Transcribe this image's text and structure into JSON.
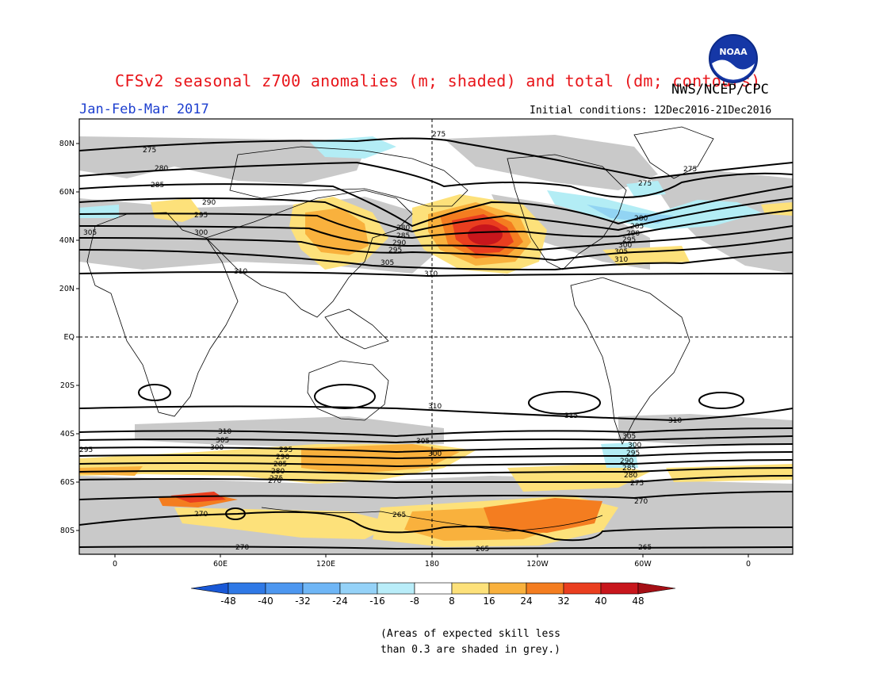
{
  "header": {
    "title": "CFSv2 seasonal z700 anomalies (m; shaded) and total (dm; contours)",
    "agency": "NWS/NCEP/CPC",
    "season": "Jan-Feb-Mar 2017",
    "initial_conditions": "Initial conditions: 12Dec2016-21Dec2016"
  },
  "logo": {
    "text": "NOAA"
  },
  "map": {
    "lat_labels": [
      "80N",
      "60N",
      "40N",
      "20N",
      "EQ",
      "20S",
      "40S",
      "60S",
      "80S"
    ],
    "lon_labels": [
      "0",
      "60E",
      "120E",
      "180",
      "120W",
      "60W",
      "0"
    ],
    "contour_labels": {
      "north": [
        "275",
        "280",
        "285",
        "290",
        "295",
        "300",
        "305",
        "310"
      ],
      "south": [
        "315",
        "310",
        "305",
        "300",
        "295",
        "290",
        "285",
        "280",
        "275",
        "270",
        "265"
      ]
    },
    "anomaly_colors": {
      "dark_red": "#c8161c",
      "red": "#ea3e1f",
      "orange": "#f47d20",
      "light_orange": "#f9b13d",
      "yellow": "#fde17a",
      "light_blue": "#b3edf5",
      "sky_blue": "#92d4f3",
      "grey": "#c9c9c9"
    }
  },
  "colorbar": {
    "labels": [
      "-48",
      "-40",
      "-32",
      "-24",
      "-16",
      "-8",
      "8",
      "16",
      "24",
      "32",
      "40",
      "48"
    ],
    "colors": [
      "#1958d6",
      "#2f79e6",
      "#4d97f0",
      "#6fb6f6",
      "#95d2f8",
      "#b9edf9",
      "#ffffff",
      "#fde17a",
      "#f9b13d",
      "#f47d20",
      "#ea3e1f",
      "#c8161c",
      "#a50f15"
    ]
  },
  "note": {
    "line1": "(Areas of expected skill less",
    "line2": "than 0.3 are shaded in grey.)"
  }
}
